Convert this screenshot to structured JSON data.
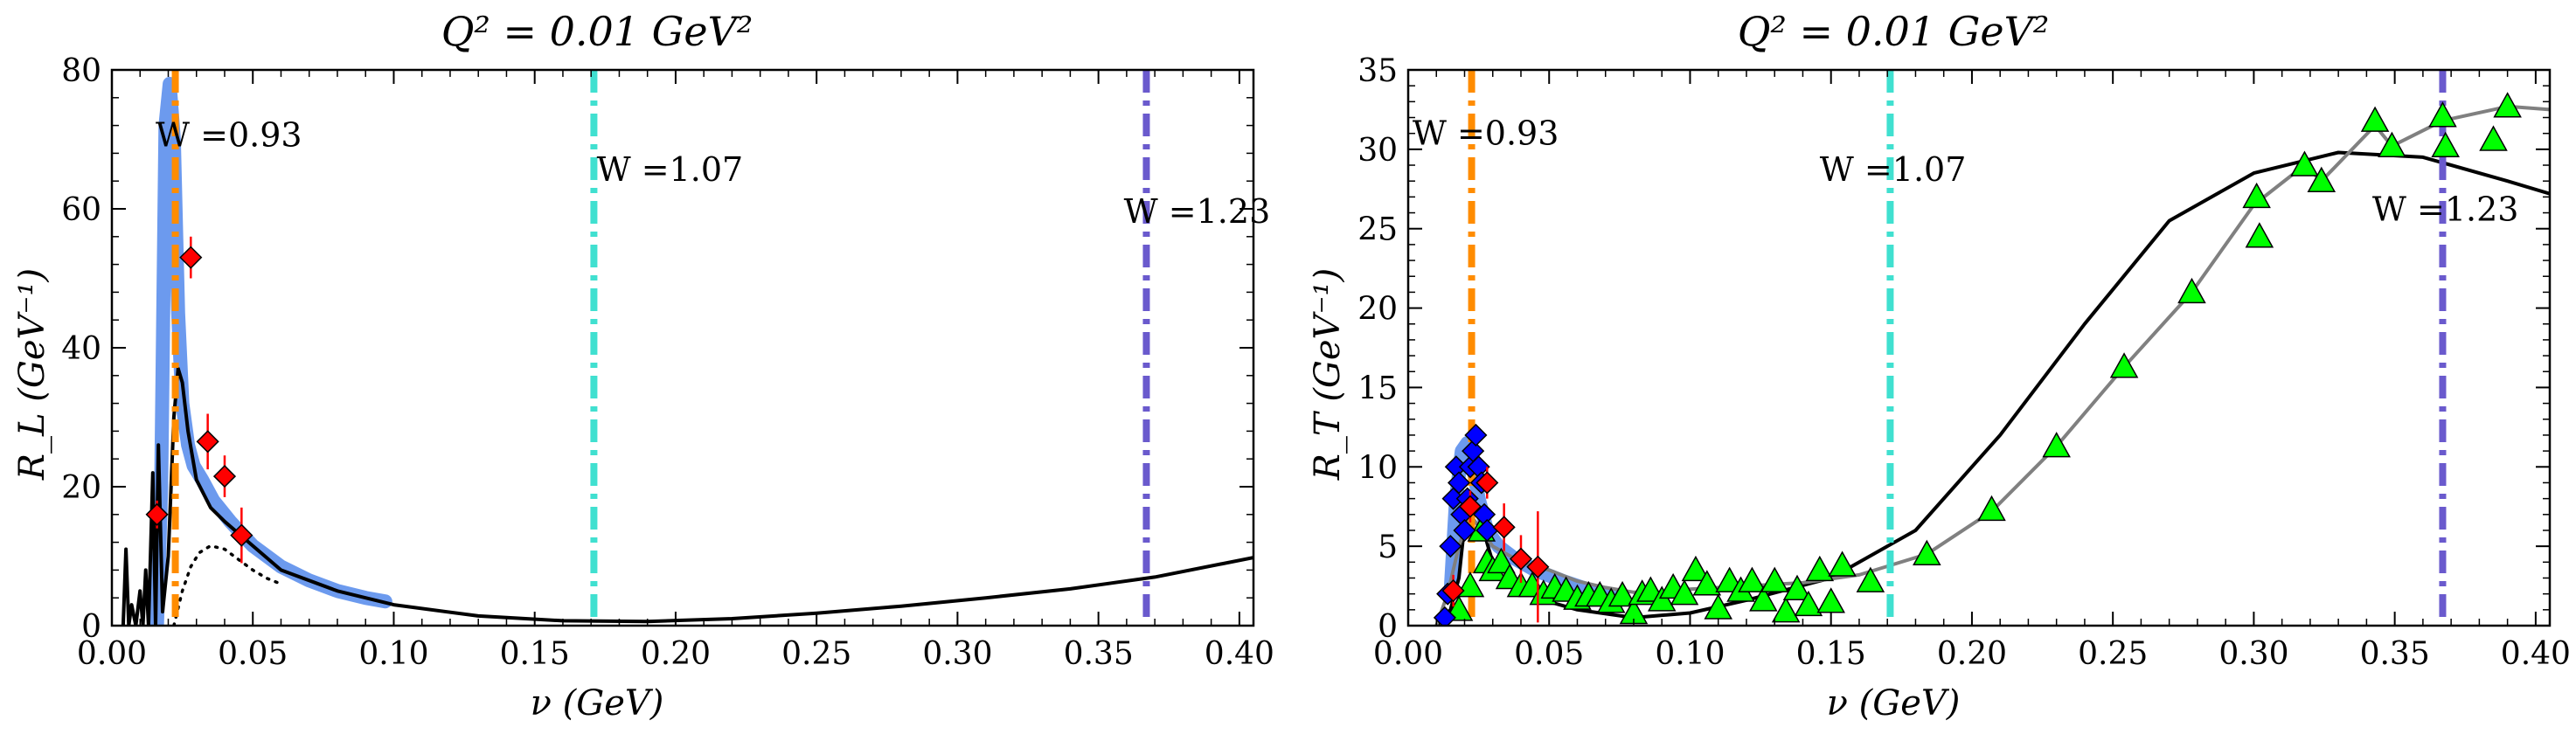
{
  "chart_data": [
    {
      "type": "line",
      "title": "Q² = 0.01 GeV²",
      "xlabel": "ν (GeV)",
      "ylabel": "R_L (GeV⁻¹)",
      "xlim": [
        0.0,
        0.405
      ],
      "ylim": [
        0,
        80
      ],
      "x_ticks": [
        0.0,
        0.05,
        0.1,
        0.15,
        0.2,
        0.25,
        0.3,
        0.35,
        0.4
      ],
      "x_tick_labels": [
        "0.00",
        "0.05",
        "0.10",
        "0.15",
        "0.20",
        "0.25",
        "0.30",
        "0.35",
        "0.40"
      ],
      "y_ticks": [
        0,
        20,
        40,
        60,
        80
      ],
      "y_tick_labels": [
        "0",
        "20",
        "40",
        "60",
        "80"
      ],
      "vlines": [
        {
          "x": 0.0225,
          "color": "#ff8c00",
          "label": "W =0.93",
          "label_x": 0.0155,
          "label_y": 69
        },
        {
          "x": 0.171,
          "color": "#40e0d0",
          "label": "W =1.07",
          "label_x": 0.172,
          "label_y": 64
        },
        {
          "x": 0.367,
          "color": "#6a5acd",
          "label": "W =1.23",
          "label_x": 0.359,
          "label_y": 58
        }
      ],
      "series": [
        {
          "style": "band",
          "color": "#6495ed",
          "x": [
            0.016,
            0.0175,
            0.019,
            0.0205,
            0.022,
            0.0235,
            0.025,
            0.027,
            0.029,
            0.032,
            0.036,
            0.042,
            0.05,
            0.06,
            0.07,
            0.08,
            0.09,
            0.097
          ],
          "y": [
            0,
            20,
            72,
            78,
            70,
            45,
            32,
            26,
            23,
            21,
            18,
            15,
            11.5,
            8.5,
            6.5,
            5,
            4,
            3.5
          ]
        },
        {
          "style": "solid",
          "color": "#000000",
          "x": [
            0.004,
            0.005,
            0.006,
            0.007,
            0.0085,
            0.01,
            0.011,
            0.012,
            0.013,
            0.0145,
            0.0155,
            0.0165,
            0.018,
            0.02,
            0.022,
            0.0235,
            0.025,
            0.027,
            0.03,
            0.035,
            0.04,
            0.05,
            0.06,
            0.08,
            0.1,
            0.13,
            0.16,
            0.19,
            0.22,
            0.25,
            0.28,
            0.31,
            0.34,
            0.37,
            0.405
          ],
          "y": [
            0,
            11,
            0,
            3,
            0,
            5,
            0,
            8,
            0,
            22,
            0,
            26,
            2,
            10,
            30,
            37,
            35,
            28,
            21,
            17,
            15,
            11.5,
            8,
            5,
            3,
            1.4,
            0.7,
            0.6,
            1.0,
            1.8,
            2.8,
            4.0,
            5.3,
            7.0,
            9.8
          ]
        },
        {
          "style": "dotted",
          "color": "#000000",
          "x": [
            0.022,
            0.025,
            0.028,
            0.031,
            0.035,
            0.04,
            0.045,
            0.05,
            0.055,
            0.06
          ],
          "y": [
            0,
            5,
            8.5,
            10.5,
            11.5,
            11,
            9.5,
            8,
            6.8,
            6
          ]
        }
      ],
      "points": {
        "marker": "diamond",
        "color": "#ff0000",
        "x": [
          0.016,
          0.028,
          0.034,
          0.04,
          0.046
        ],
        "y": [
          16,
          53,
          26.5,
          21.5,
          13
        ],
        "yerr": [
          2,
          3,
          4,
          3,
          4
        ]
      }
    },
    {
      "type": "line",
      "title": "Q² = 0.01 GeV²",
      "xlabel": "ν (GeV)",
      "ylabel": "R_T (GeV⁻¹)",
      "xlim": [
        0.0,
        0.405
      ],
      "ylim": [
        0,
        35
      ],
      "x_ticks": [
        0.0,
        0.05,
        0.1,
        0.15,
        0.2,
        0.25,
        0.3,
        0.35,
        0.4
      ],
      "x_tick_labels": [
        "0.00",
        "0.05",
        "0.10",
        "0.15",
        "0.20",
        "0.25",
        "0.30",
        "0.35",
        "0.40"
      ],
      "y_ticks": [
        0,
        5,
        10,
        15,
        20,
        25,
        30,
        35
      ],
      "y_tick_labels": [
        "0",
        "5",
        "10",
        "15",
        "20",
        "25",
        "30",
        "35"
      ],
      "vlines": [
        {
          "x": 0.0225,
          "color": "#ff8c00",
          "label": "W =0.93",
          "label_x": 0.0015,
          "label_y": 30.3
        },
        {
          "x": 0.171,
          "color": "#40e0d0",
          "label": "W =1.07",
          "label_x": 0.146,
          "label_y": 28
        },
        {
          "x": 0.367,
          "color": "#6a5acd",
          "label": "W =1.23",
          "label_x": 0.342,
          "label_y": 25.5
        }
      ],
      "series": [
        {
          "style": "band",
          "color": "#6495ed",
          "x": [
            0.015,
            0.017,
            0.019,
            0.021,
            0.023,
            0.025,
            0.028,
            0.032,
            0.038,
            0.045,
            0.055,
            0.065,
            0.075
          ],
          "y": [
            2,
            8,
            11,
            11.5,
            10,
            8,
            6,
            5,
            4.2,
            3.5,
            2.8,
            2.2,
            1.8
          ]
        },
        {
          "style": "solid",
          "color": "#000000",
          "x": [
            0.01,
            0.015,
            0.018,
            0.021,
            0.025,
            0.03,
            0.04,
            0.05,
            0.06,
            0.08,
            0.1,
            0.12,
            0.15,
            0.18,
            0.21,
            0.24,
            0.27,
            0.3,
            0.33,
            0.36,
            0.39,
            0.405
          ],
          "y": [
            0,
            1,
            3,
            8,
            7,
            4,
            2.5,
            1.5,
            1,
            0.5,
            0.8,
            1.6,
            3,
            6,
            12,
            19,
            25.5,
            28.5,
            29.8,
            29.5,
            28,
            27.2
          ]
        },
        {
          "style": "solid",
          "color": "#808080",
          "x": [
            0.01,
            0.014,
            0.018,
            0.022,
            0.026,
            0.03,
            0.04,
            0.05,
            0.06,
            0.07,
            0.08,
            0.09,
            0.1,
            0.12,
            0.14,
            0.16,
            0.184,
            0.207,
            0.23,
            0.254,
            0.278,
            0.3,
            0.318,
            0.324,
            0.343,
            0.349,
            0.367,
            0.385,
            0.39,
            0.405
          ],
          "y": [
            0,
            2,
            5,
            7,
            6,
            5,
            4,
            3.5,
            2.8,
            2.4,
            2.1,
            2.1,
            2.3,
            2.5,
            2.7,
            3.2,
            4.5,
            7.2,
            11.3,
            16.3,
            21,
            26.5,
            29,
            28,
            31.5,
            30.2,
            31.8,
            32.5,
            32.7,
            32.5
          ]
        }
      ],
      "point_sets": [
        {
          "marker": "triangle",
          "color": "#00ff00",
          "x": [
            0.018,
            0.022,
            0.026,
            0.028,
            0.03,
            0.033,
            0.036,
            0.04,
            0.044,
            0.048,
            0.052,
            0.056,
            0.06,
            0.064,
            0.068,
            0.072,
            0.076,
            0.08,
            0.083,
            0.086,
            0.09,
            0.094,
            0.098,
            0.102,
            0.106,
            0.11,
            0.114,
            0.118,
            0.122,
            0.126,
            0.13,
            0.134,
            0.138,
            0.142,
            0.146,
            0.15,
            0.154,
            0.164,
            0.184,
            0.207,
            0.23,
            0.254,
            0.278,
            0.301,
            0.302,
            0.318,
            0.324,
            0.343,
            0.349,
            0.367,
            0.368,
            0.385,
            0.39
          ],
          "y": [
            1,
            2.5,
            6,
            4,
            3.5,
            4,
            3,
            2.5,
            2.5,
            2,
            2.4,
            2.2,
            1.7,
            1.9,
            1.9,
            1.5,
            1.9,
            0.8,
            2.0,
            2.2,
            1.6,
            2.4,
            2.0,
            3.5,
            2.6,
            1.1,
            2.8,
            2.2,
            2.8,
            1.6,
            2.8,
            0.9,
            2.3,
            1.3,
            3.5,
            1.5,
            3.8,
            2.8,
            4.5,
            7.3,
            11.3,
            16.3,
            21,
            27,
            24.5,
            29,
            28,
            31.8,
            30.2,
            32.1,
            30.2,
            30.6,
            32.7
          ]
        },
        {
          "marker": "diamond",
          "color": "#0000ff",
          "x": [
            0.013,
            0.014,
            0.015,
            0.016,
            0.017,
            0.018,
            0.019,
            0.02,
            0.021,
            0.022,
            0.023,
            0.024,
            0.025,
            0.026,
            0.027,
            0.028
          ],
          "y": [
            0.5,
            2,
            5,
            8,
            10,
            9,
            7,
            6,
            8,
            10,
            11,
            12,
            10,
            9,
            7,
            6
          ]
        },
        {
          "marker": "diamond",
          "color": "#ff0000",
          "x": [
            0.016,
            0.022,
            0.028,
            0.034,
            0.04,
            0.046
          ],
          "y": [
            2.2,
            7.5,
            9,
            6.2,
            4.2,
            3.7
          ],
          "yerr": [
            1,
            1,
            1,
            1.5,
            1.5,
            3.5
          ]
        }
      ]
    }
  ]
}
